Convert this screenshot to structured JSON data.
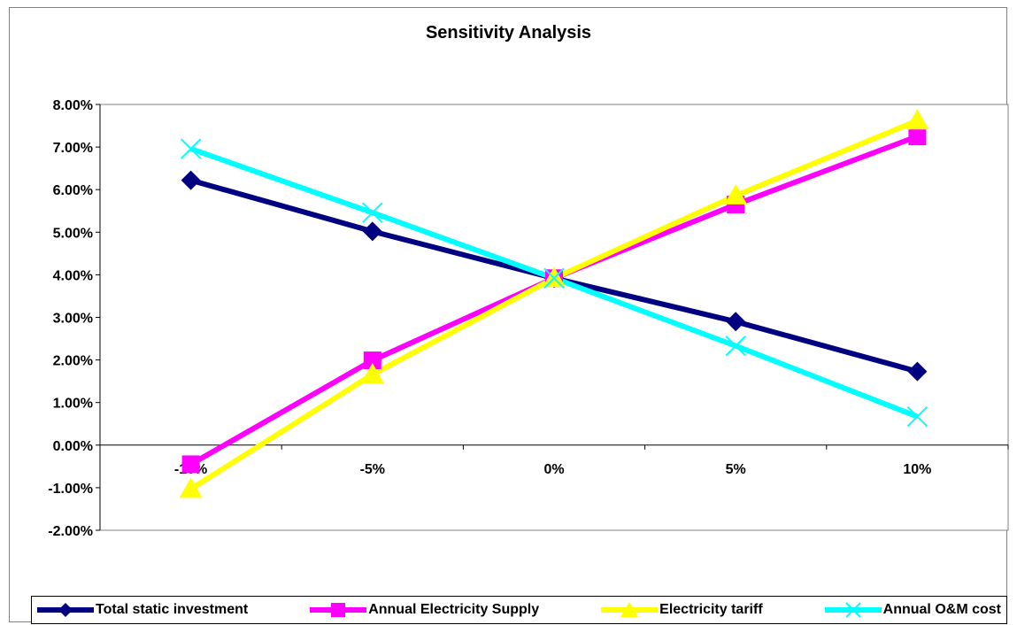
{
  "chart_data": {
    "type": "line",
    "title": "Sensitivity Analysis",
    "xlabel": "",
    "ylabel": "",
    "categories": [
      "-10%",
      "-5%",
      "0%",
      "5%",
      "10%"
    ],
    "y_tick_labels": [
      "8.00%",
      "7.00%",
      "6.00%",
      "5.00%",
      "4.00%",
      "3.00%",
      "2.00%",
      "1.00%",
      "0.00%",
      "-1.00%",
      "-2.00%"
    ],
    "ylim": [
      -2,
      8
    ],
    "y_unit": "percent",
    "grid": false,
    "legend_placement": "bottom",
    "series": [
      {
        "name": "Total static investment",
        "color": "#000080",
        "marker": "diamond",
        "values": [
          6.22,
          5.02,
          3.92,
          2.9,
          1.73
        ]
      },
      {
        "name": "Annual Electricity Supply",
        "color": "#FF00FF",
        "marker": "square",
        "values": [
          -0.45,
          1.99,
          3.92,
          5.65,
          7.25
        ]
      },
      {
        "name": "Electricity tariff",
        "color": "#FFFF00",
        "marker": "triangle",
        "values": [
          -1.03,
          1.66,
          3.92,
          5.86,
          7.62
        ]
      },
      {
        "name": "Annual O&M cost",
        "color": "#00FFFF",
        "marker": "x",
        "values": [
          6.96,
          5.46,
          3.92,
          2.33,
          0.67
        ]
      }
    ]
  }
}
